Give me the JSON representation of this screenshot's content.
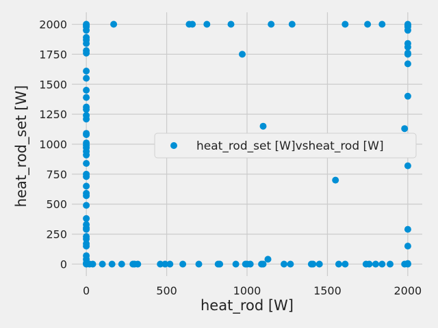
{
  "chart_data": {
    "type": "scatter",
    "xlabel": "heat_rod [W]",
    "ylabel": "heat_rod_set [W]",
    "xlim": [
      -90,
      2090
    ],
    "ylim": [
      -100,
      2100
    ],
    "xticks": [
      "0",
      "500",
      "1000",
      "1500",
      "2000"
    ],
    "xtick_values": [
      0,
      500,
      1000,
      1500,
      2000
    ],
    "yticks": [
      "0",
      "250",
      "500",
      "750",
      "1000",
      "1250",
      "1500",
      "1750",
      "2000"
    ],
    "ytick_values": [
      0,
      250,
      500,
      750,
      1000,
      1250,
      1500,
      1750,
      2000
    ],
    "grid": true,
    "legend": {
      "position": "center-right",
      "label": "heat_rod_set [W]vsheat_rod [W]"
    },
    "colors": {
      "point": "#008fd5",
      "background": "#f0f0f0",
      "grid": "#cbcbcb"
    },
    "series": [
      {
        "name": "heat_rod_set [W]vsheat_rod [W]",
        "points": [
          [
            0,
            2000
          ],
          [
            0,
            1990
          ],
          [
            0,
            1980
          ],
          [
            0,
            1950
          ],
          [
            0,
            1890
          ],
          [
            0,
            1870
          ],
          [
            0,
            1840
          ],
          [
            0,
            1780
          ],
          [
            0,
            1760
          ],
          [
            0,
            1610
          ],
          [
            0,
            1550
          ],
          [
            0,
            1450
          ],
          [
            0,
            1390
          ],
          [
            0,
            1310
          ],
          [
            0,
            1290
          ],
          [
            0,
            1240
          ],
          [
            0,
            1210
          ],
          [
            0,
            1090
          ],
          [
            0,
            1080
          ],
          [
            0,
            1010
          ],
          [
            0,
            990
          ],
          [
            0,
            970
          ],
          [
            0,
            940
          ],
          [
            0,
            910
          ],
          [
            0,
            840
          ],
          [
            0,
            750
          ],
          [
            0,
            730
          ],
          [
            0,
            650
          ],
          [
            0,
            590
          ],
          [
            0,
            570
          ],
          [
            0,
            490
          ],
          [
            0,
            380
          ],
          [
            0,
            330
          ],
          [
            0,
            300
          ],
          [
            0,
            290
          ],
          [
            0,
            230
          ],
          [
            0,
            210
          ],
          [
            0,
            170
          ],
          [
            0,
            150
          ],
          [
            0,
            70
          ],
          [
            0,
            40
          ],
          [
            0,
            10
          ],
          [
            0,
            5
          ],
          [
            0,
            0
          ],
          [
            170,
            2000
          ],
          [
            640,
            2000
          ],
          [
            660,
            2000
          ],
          [
            750,
            2000
          ],
          [
            900,
            2000
          ],
          [
            1150,
            2000
          ],
          [
            1280,
            2000
          ],
          [
            1610,
            2000
          ],
          [
            1750,
            2000
          ],
          [
            1840,
            2000
          ],
          [
            970,
            1750
          ],
          [
            1100,
            1150
          ],
          [
            1980,
            1130
          ],
          [
            1550,
            700
          ],
          [
            2000,
            2000
          ],
          [
            2000,
            1990
          ],
          [
            2000,
            1980
          ],
          [
            2000,
            1950
          ],
          [
            2000,
            1840
          ],
          [
            2000,
            1810
          ],
          [
            2000,
            1760
          ],
          [
            2000,
            1750
          ],
          [
            2000,
            1670
          ],
          [
            2000,
            1400
          ],
          [
            2000,
            820
          ],
          [
            2000,
            290
          ],
          [
            2000,
            150
          ],
          [
            2000,
            5
          ],
          [
            20,
            0
          ],
          [
            40,
            0
          ],
          [
            100,
            0
          ],
          [
            160,
            0
          ],
          [
            220,
            0
          ],
          [
            290,
            0
          ],
          [
            300,
            0
          ],
          [
            320,
            0
          ],
          [
            460,
            0
          ],
          [
            490,
            0
          ],
          [
            520,
            0
          ],
          [
            600,
            0
          ],
          [
            700,
            0
          ],
          [
            820,
            0
          ],
          [
            830,
            0
          ],
          [
            930,
            0
          ],
          [
            990,
            0
          ],
          [
            1000,
            0
          ],
          [
            1020,
            0
          ],
          [
            1090,
            0
          ],
          [
            1100,
            0
          ],
          [
            1130,
            40
          ],
          [
            1230,
            0
          ],
          [
            1270,
            0
          ],
          [
            1400,
            0
          ],
          [
            1410,
            0
          ],
          [
            1450,
            0
          ],
          [
            1570,
            0
          ],
          [
            1610,
            0
          ],
          [
            1740,
            0
          ],
          [
            1760,
            0
          ],
          [
            1800,
            0
          ],
          [
            1840,
            0
          ],
          [
            1890,
            0
          ],
          [
            1980,
            0
          ],
          [
            2000,
            0
          ]
        ]
      }
    ]
  }
}
